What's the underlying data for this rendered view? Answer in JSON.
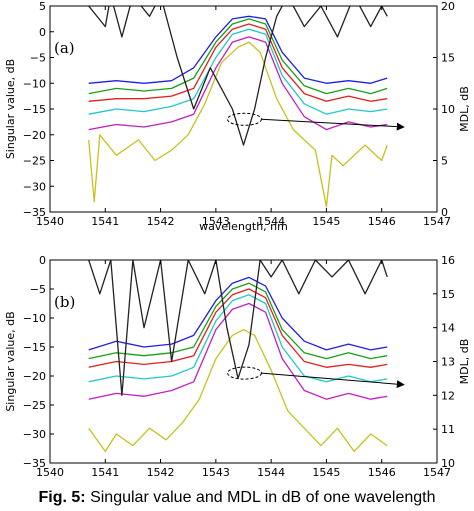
{
  "caption": {
    "prefix": "Fig. 5:",
    "text": "Singular value and MDL in dB of one wavelength"
  },
  "chart_data": [
    {
      "type": "line",
      "panel_label": "(a)",
      "xlabel": "wavelength, nm",
      "ylabel": "Singular value, dB",
      "y2label": "MDL, dB",
      "xlim": [
        1540,
        1547
      ],
      "ylim": [
        -35,
        5
      ],
      "y2lim": [
        0,
        20
      ],
      "xticks": [
        1540,
        1541,
        1542,
        1543,
        1544,
        1545,
        1546,
        1547
      ],
      "yticks": [
        5,
        0,
        -5,
        -10,
        -15,
        -20,
        -25,
        -30,
        -35
      ],
      "y2ticks": [
        20,
        15,
        10,
        5,
        0
      ],
      "grid": false,
      "series": [
        {
          "color": "#2020e0",
          "axis": "left",
          "x": [
            1540.7,
            1541.2,
            1541.7,
            1542.2,
            1542.6,
            1543.0,
            1543.3,
            1543.6,
            1543.9,
            1544.2,
            1544.6,
            1545.0,
            1545.4,
            1545.8,
            1546.1
          ],
          "y": [
            -10,
            -9.5,
            -10,
            -9.5,
            -7,
            -1,
            2.5,
            3,
            2.5,
            -4,
            -9,
            -10,
            -9.5,
            -10,
            -9
          ]
        },
        {
          "color": "#18a018",
          "axis": "left",
          "x": [
            1540.7,
            1541.2,
            1541.7,
            1542.2,
            1542.6,
            1543.0,
            1543.3,
            1543.6,
            1543.9,
            1544.2,
            1544.6,
            1545.0,
            1545.4,
            1545.8,
            1546.1
          ],
          "y": [
            -12,
            -11,
            -11.5,
            -11,
            -9,
            -2,
            1.5,
            2.5,
            1.5,
            -5.5,
            -10.5,
            -12,
            -11,
            -12,
            -11
          ]
        },
        {
          "color": "#e02020",
          "axis": "left",
          "x": [
            1540.7,
            1541.2,
            1541.7,
            1542.2,
            1542.6,
            1543.0,
            1543.3,
            1543.6,
            1543.9,
            1544.2,
            1544.6,
            1545.0,
            1545.4,
            1545.8,
            1546.1
          ],
          "y": [
            -13.5,
            -13,
            -13,
            -12.5,
            -11,
            -3,
            0.5,
            1.5,
            0.5,
            -7,
            -12,
            -13.5,
            -12.5,
            -13.5,
            -13
          ]
        },
        {
          "color": "#20c8c8",
          "axis": "left",
          "x": [
            1540.7,
            1541.2,
            1541.7,
            1542.2,
            1542.6,
            1543.0,
            1543.3,
            1543.6,
            1543.9,
            1544.2,
            1544.6,
            1545.0,
            1545.4,
            1545.8,
            1546.1
          ],
          "y": [
            -16,
            -15,
            -15.5,
            -14.5,
            -13,
            -5,
            -0.5,
            0.5,
            -0.5,
            -8.5,
            -14,
            -16,
            -15,
            -15.5,
            -15
          ]
        },
        {
          "color": "#c020c0",
          "axis": "left",
          "x": [
            1540.7,
            1541.2,
            1541.7,
            1542.2,
            1542.6,
            1543.0,
            1543.3,
            1543.6,
            1543.9,
            1544.2,
            1544.6,
            1545.0,
            1545.4,
            1545.8,
            1546.1
          ],
          "y": [
            -19,
            -18,
            -18.5,
            -17.5,
            -16,
            -7,
            -2,
            -1,
            -2,
            -10,
            -16.5,
            -19,
            -17.5,
            -18.5,
            -18
          ]
        },
        {
          "color": "#c8c020",
          "axis": "left",
          "x": [
            1540.7,
            1540.8,
            1540.9,
            1541.2,
            1541.6,
            1541.9,
            1542.2,
            1542.5,
            1542.8,
            1543.1,
            1543.4,
            1543.6,
            1543.8,
            1544.1,
            1544.4,
            1544.8,
            1545.0,
            1545.1,
            1545.3,
            1545.7,
            1546.0,
            1546.1
          ],
          "y": [
            -21,
            -33,
            -20,
            -24,
            -21,
            -25,
            -23,
            -20,
            -14,
            -6,
            -3,
            -2,
            -4,
            -13,
            -19,
            -23,
            -34,
            -24,
            -26,
            -22,
            -25,
            -22
          ]
        },
        {
          "color": "#222222",
          "axis": "right",
          "x": [
            1540.7,
            1541.0,
            1541.1,
            1541.3,
            1541.5,
            1541.8,
            1542.0,
            1542.3,
            1542.6,
            1542.9,
            1543.1,
            1543.3,
            1543.5,
            1543.7,
            1543.9,
            1544.1,
            1544.3,
            1544.6,
            1544.9,
            1545.2,
            1545.5,
            1545.8,
            1546.0,
            1546.1
          ],
          "y": [
            20,
            18,
            21,
            17,
            21,
            19,
            21,
            15,
            10,
            14,
            12,
            10,
            6.5,
            10,
            15,
            19,
            21,
            18,
            20,
            17,
            21,
            18,
            20,
            19
          ]
        }
      ],
      "annotation": {
        "type": "arrow",
        "from": [
          1543.5,
          -17
        ],
        "to": [
          1546.4,
          -18.5
        ]
      }
    },
    {
      "type": "line",
      "panel_label": "(b)",
      "xlabel": "",
      "ylabel": "Singular value, dB",
      "y2label": "MDL, dB",
      "xlim": [
        1540,
        1547
      ],
      "ylim": [
        -35,
        0
      ],
      "y2lim": [
        10,
        16
      ],
      "xticks": [
        1540,
        1541,
        1542,
        1543,
        1544,
        1545,
        1546,
        1547
      ],
      "yticks": [
        0,
        -5,
        -10,
        -15,
        -20,
        -25,
        -30,
        -35
      ],
      "y2ticks": [
        16,
        15,
        14,
        13,
        12,
        11,
        10
      ],
      "grid": false,
      "series": [
        {
          "color": "#2020e0",
          "axis": "left",
          "x": [
            1540.7,
            1541.2,
            1541.7,
            1542.2,
            1542.6,
            1543.0,
            1543.3,
            1543.6,
            1543.9,
            1544.2,
            1544.6,
            1545.0,
            1545.4,
            1545.8,
            1546.1
          ],
          "y": [
            -15.5,
            -14,
            -15,
            -14.5,
            -13,
            -7,
            -4,
            -3,
            -4.5,
            -10,
            -14,
            -15.5,
            -14.5,
            -15.5,
            -15
          ]
        },
        {
          "color": "#18a018",
          "axis": "left",
          "x": [
            1540.7,
            1541.2,
            1541.7,
            1542.2,
            1542.6,
            1543.0,
            1543.3,
            1543.6,
            1543.9,
            1544.2,
            1544.6,
            1545.0,
            1545.4,
            1545.8,
            1546.1
          ],
          "y": [
            -17,
            -16,
            -16.5,
            -16,
            -15,
            -8,
            -5,
            -4,
            -5.5,
            -12,
            -16,
            -17,
            -16,
            -17,
            -16.5
          ]
        },
        {
          "color": "#e02020",
          "axis": "left",
          "x": [
            1540.7,
            1541.2,
            1541.7,
            1542.2,
            1542.6,
            1543.0,
            1543.3,
            1543.6,
            1543.9,
            1544.2,
            1544.6,
            1545.0,
            1545.4,
            1545.8,
            1546.1
          ],
          "y": [
            -18.5,
            -17.5,
            -18,
            -17.5,
            -16.5,
            -9,
            -6,
            -5,
            -6.5,
            -13,
            -17.5,
            -18.5,
            -18,
            -18.5,
            -18
          ]
        },
        {
          "color": "#20c8c8",
          "axis": "left",
          "x": [
            1540.7,
            1541.2,
            1541.7,
            1542.2,
            1542.6,
            1543.0,
            1543.3,
            1543.6,
            1543.9,
            1544.2,
            1544.6,
            1545.0,
            1545.4,
            1545.8,
            1546.1
          ],
          "y": [
            -21,
            -20,
            -20.5,
            -20,
            -18.5,
            -10.5,
            -7,
            -6,
            -7.5,
            -15,
            -20,
            -21,
            -20,
            -21,
            -20.5
          ]
        },
        {
          "color": "#c020c0",
          "axis": "left",
          "x": [
            1540.7,
            1541.2,
            1541.7,
            1542.2,
            1542.6,
            1543.0,
            1543.3,
            1543.6,
            1543.9,
            1544.2,
            1544.6,
            1545.0,
            1545.4,
            1545.8,
            1546.1
          ],
          "y": [
            -24,
            -23,
            -23.5,
            -22.5,
            -21,
            -12,
            -8.5,
            -7.5,
            -9,
            -17,
            -22.5,
            -24,
            -23,
            -24,
            -23.5
          ]
        },
        {
          "color": "#c8c020",
          "axis": "left",
          "x": [
            1540.7,
            1541.0,
            1541.2,
            1541.5,
            1541.8,
            1542.1,
            1542.4,
            1542.7,
            1543.0,
            1543.3,
            1543.5,
            1543.7,
            1544.0,
            1544.3,
            1544.6,
            1544.9,
            1545.2,
            1545.5,
            1545.8,
            1546.1
          ],
          "y": [
            -29,
            -33,
            -30,
            -32,
            -29,
            -31,
            -28,
            -24,
            -17,
            -13,
            -12,
            -13,
            -19,
            -26,
            -29,
            -32,
            -29,
            -33,
            -30,
            -32
          ]
        },
        {
          "color": "#222222",
          "axis": "right",
          "x": [
            1540.7,
            1540.9,
            1541.1,
            1541.3,
            1541.5,
            1541.7,
            1542.0,
            1542.2,
            1542.5,
            1542.8,
            1543.0,
            1543.2,
            1543.4,
            1543.6,
            1543.8,
            1544.0,
            1544.2,
            1544.5,
            1544.8,
            1545.1,
            1545.4,
            1545.7,
            1546.0,
            1546.1
          ],
          "y": [
            16,
            15,
            16,
            12,
            16,
            14,
            16,
            13,
            16,
            15,
            16,
            14,
            12.5,
            13.5,
            16,
            15.5,
            16,
            15,
            16,
            15.5,
            16,
            15,
            16,
            15.5
          ]
        }
      ],
      "annotation": {
        "type": "arrow",
        "from": [
          1543.5,
          -19.5
        ],
        "to": [
          1546.4,
          -21.5
        ]
      }
    }
  ]
}
